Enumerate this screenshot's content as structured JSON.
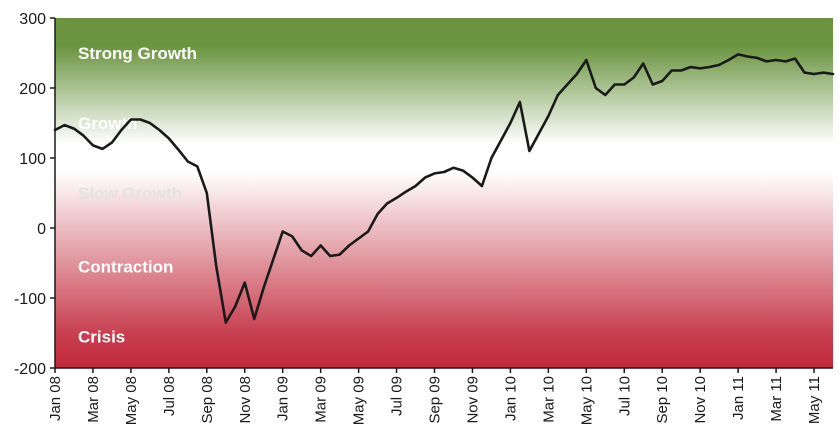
{
  "chart_data": {
    "type": "line",
    "title": "",
    "xlabel": "",
    "ylabel": "",
    "ylim": [
      -200,
      300
    ],
    "yticks": [
      "300",
      "200",
      "100",
      "0",
      "-100",
      "-200"
    ],
    "ytick_values": [
      300,
      200,
      100,
      0,
      -100,
      -200
    ],
    "xticks": [
      "Jan 08",
      "Mar 08",
      "May 08",
      "Jul 08",
      "Sep 08",
      "Nov 08",
      "Jan 09",
      "Mar 09",
      "May 09",
      "Jul 09",
      "Sep 09",
      "Nov 09",
      "Jan 10",
      "Mar 10",
      "May 10",
      "Jul 10",
      "Sep 10",
      "Nov 10",
      "Jan 11",
      "Mar 11",
      "May 11"
    ],
    "xtick_months": [
      0,
      2,
      4,
      6,
      8,
      10,
      12,
      14,
      16,
      18,
      20,
      22,
      24,
      26,
      28,
      30,
      32,
      34,
      36,
      38,
      40
    ],
    "legend": "none",
    "grid": false,
    "zones": [
      {
        "label": "Strong Growth",
        "y": 250
      },
      {
        "label": "Growth",
        "y": 150
      },
      {
        "label": "Slow Growth",
        "y": 50
      },
      {
        "label": "Contraction",
        "y": -55
      },
      {
        "label": "Crisis",
        "y": -155
      }
    ],
    "colors": {
      "top": "#6a9440",
      "middle": "#ffffff",
      "bottom": "#c1283c",
      "line": "#1a1a1a"
    },
    "series": [
      {
        "x": [
          0,
          0.5,
          1,
          1.5,
          2,
          2.5,
          3,
          3.5,
          4,
          4.5,
          5,
          5.5,
          6,
          6.5,
          7,
          7.5,
          8,
          8.5,
          9,
          9.5,
          10,
          10.5,
          11,
          11.5,
          12,
          12.5,
          13,
          13.5,
          14,
          14.5,
          15,
          15.5,
          16,
          16.5,
          17,
          17.5,
          18,
          18.5,
          19,
          19.5,
          20,
          20.5,
          21,
          21.5,
          22,
          22.5,
          23,
          23.5,
          24,
          24.5,
          25,
          25.5,
          26,
          26.5,
          27,
          27.5,
          28,
          28.5,
          29,
          29.5,
          30,
          30.5,
          31,
          31.5,
          32,
          32.5,
          33,
          33.5,
          34,
          34.5,
          35,
          35.5,
          36,
          36.5,
          37,
          37.5,
          38,
          38.5,
          39,
          39.5,
          40,
          40.5,
          41
        ],
        "values": [
          140,
          147,
          142,
          132,
          118,
          113,
          122,
          140,
          155,
          155,
          150,
          140,
          128,
          112,
          95,
          88,
          50,
          -55,
          -135,
          -112,
          -78,
          -130,
          -85,
          -45,
          -5,
          -12,
          -32,
          -40,
          -25,
          -40,
          -38,
          -25,
          -15,
          -5,
          20,
          35,
          43,
          52,
          60,
          72,
          78,
          80,
          86,
          82,
          72,
          60,
          100,
          125,
          150,
          180,
          110,
          135,
          160,
          190,
          205,
          220,
          240,
          200,
          190,
          205,
          205,
          215,
          235,
          205,
          210,
          225,
          225,
          230,
          228,
          230,
          233,
          240,
          248,
          245,
          243,
          238,
          240,
          238,
          242,
          222,
          220,
          222,
          220
        ]
      }
    ]
  }
}
